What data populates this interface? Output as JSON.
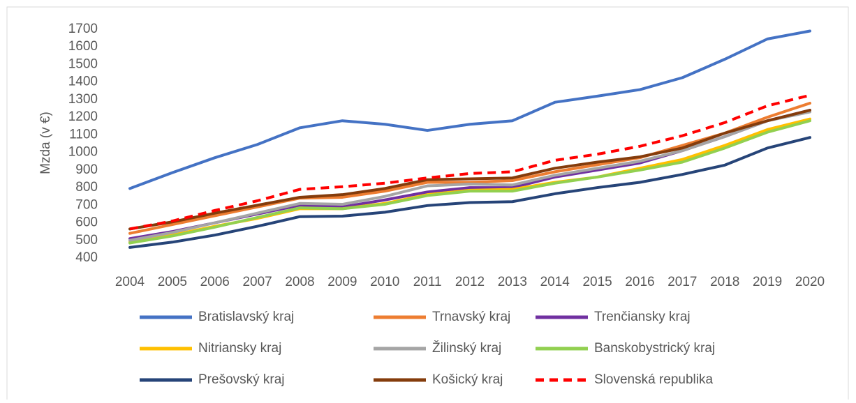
{
  "chart_data": {
    "type": "line",
    "y_label": "Mzda (v €)",
    "categories": [
      "2004",
      "2005",
      "2006",
      "2007",
      "2008",
      "2009",
      "2010",
      "2011",
      "2012",
      "2013",
      "2014",
      "2015",
      "2016",
      "2017",
      "2018",
      "2019",
      "2020"
    ],
    "ylim": [
      400,
      1700
    ],
    "yticks": [
      400,
      500,
      600,
      700,
      800,
      900,
      1000,
      1100,
      1200,
      1300,
      1400,
      1500,
      1600,
      1700
    ],
    "grid": false,
    "legend": "bottom",
    "series": [
      {
        "name": "Bratislavský kraj",
        "color": "#4472c4",
        "values": [
          795,
          885,
          970,
          1045,
          1140,
          1180,
          1160,
          1125,
          1160,
          1180,
          1285,
          1320,
          1357,
          1425,
          1530,
          1645,
          1690
        ]
      },
      {
        "name": "Trnavský kraj",
        "color": "#ed7d31",
        "values": [
          540,
          590,
          640,
          690,
          740,
          745,
          780,
          830,
          830,
          840,
          890,
          930,
          970,
          1040,
          1110,
          1200,
          1280
        ]
      },
      {
        "name": "Trenčiansky kraj",
        "color": "#7030a0",
        "values": [
          510,
          550,
          600,
          650,
          700,
          690,
          730,
          775,
          800,
          800,
          860,
          900,
          940,
          1010,
          1090,
          1180,
          1240
        ]
      },
      {
        "name": "Nitriansky kraj",
        "color": "#ffc000",
        "values": [
          490,
          530,
          580,
          625,
          680,
          680,
          710,
          760,
          785,
          790,
          830,
          860,
          910,
          960,
          1040,
          1130,
          1190
        ]
      },
      {
        "name": "Žilinský kraj",
        "color": "#a5a5a5",
        "values": [
          500,
          545,
          600,
          655,
          710,
          705,
          750,
          810,
          820,
          815,
          870,
          910,
          950,
          1010,
          1090,
          1180,
          1230
        ]
      },
      {
        "name": "Banskobystrický kraj",
        "color": "#92d050",
        "values": [
          485,
          525,
          575,
          630,
          685,
          680,
          705,
          755,
          780,
          780,
          825,
          860,
          900,
          945,
          1025,
          1115,
          1180
        ]
      },
      {
        "name": "Prešovský kraj",
        "color": "#264478",
        "values": [
          460,
          490,
          530,
          580,
          635,
          638,
          660,
          698,
          715,
          720,
          765,
          800,
          830,
          875,
          928,
          1025,
          1085
        ]
      },
      {
        "name": "Košický kraj",
        "color": "#843c0c",
        "values": [
          565,
          605,
          655,
          700,
          745,
          760,
          795,
          845,
          850,
          855,
          910,
          945,
          975,
          1025,
          1110,
          1180,
          1240
        ]
      },
      {
        "name": "Slovenská republika",
        "color": "#ff0000",
        "dashed": true,
        "values": [
          565,
          610,
          670,
          725,
          790,
          805,
          825,
          855,
          880,
          890,
          955,
          990,
          1035,
          1095,
          1170,
          1265,
          1325
        ]
      }
    ]
  }
}
